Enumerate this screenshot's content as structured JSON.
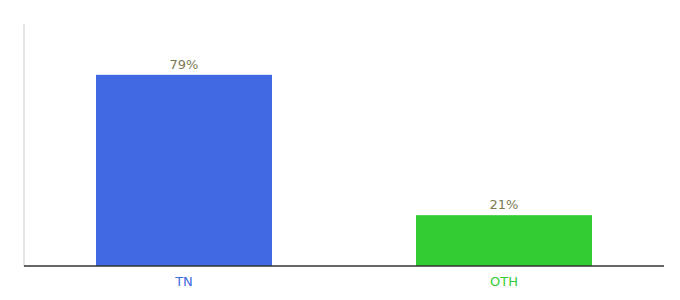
{
  "chart_data": {
    "type": "bar",
    "categories": [
      "TN",
      "OTH"
    ],
    "values": [
      79,
      21
    ],
    "value_labels": [
      "79%",
      "21%"
    ],
    "colors": [
      "#4169e1",
      "#33cc33"
    ],
    "ylim": [
      0,
      100
    ],
    "data_labels": true,
    "tick_labels": "x",
    "grid": false
  }
}
